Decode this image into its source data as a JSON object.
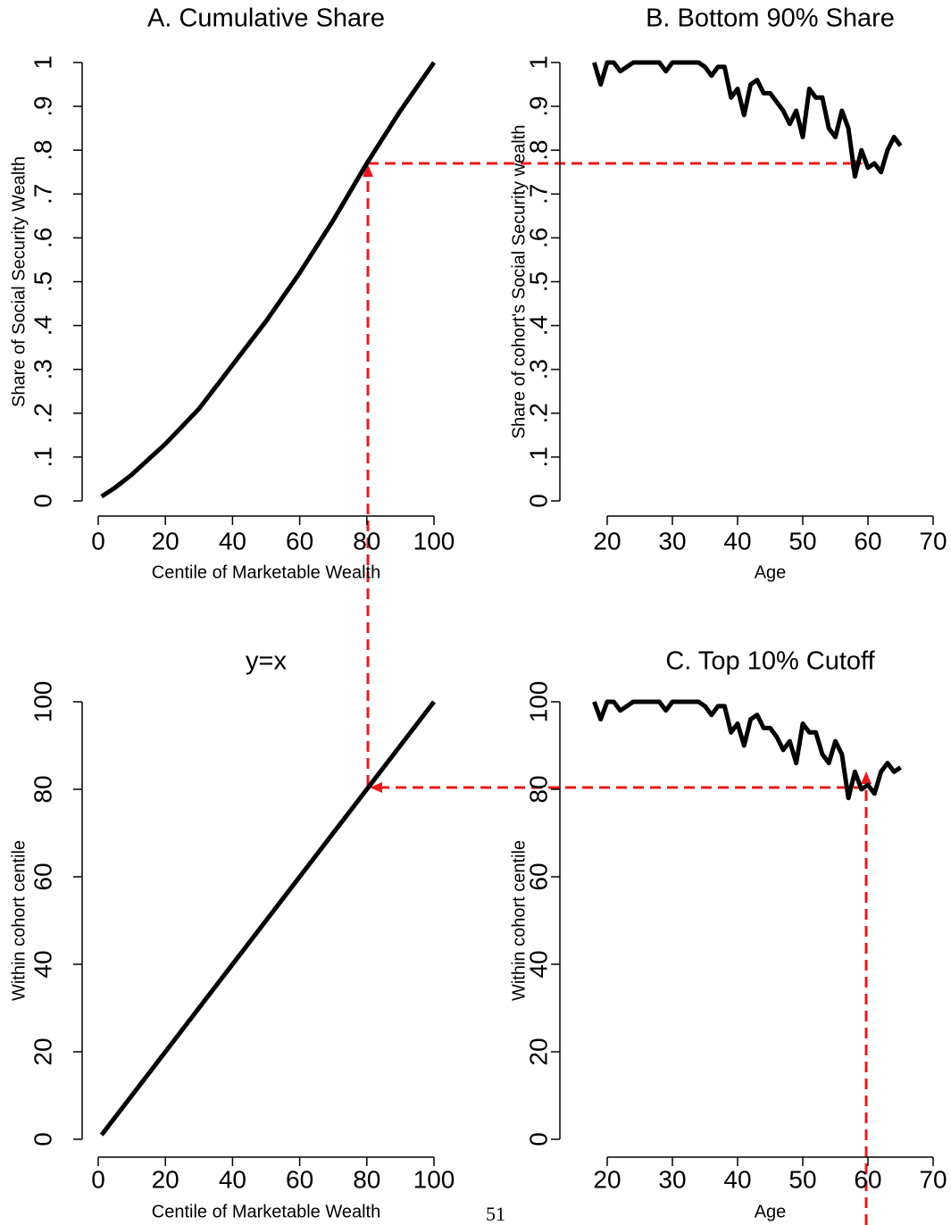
{
  "chart_data": [
    {
      "type": "line",
      "title": "A. Cumulative Share",
      "x_label": "Centile of Marketable Wealth",
      "y_label": "Share of Social Security Wealth",
      "x": [
        1,
        5,
        10,
        20,
        30,
        40,
        50,
        60,
        70,
        80,
        90,
        100
      ],
      "series": [
        {
          "color": "#000000",
          "values": [
            0.01,
            0.03,
            0.06,
            0.13,
            0.21,
            0.31,
            0.41,
            0.52,
            0.64,
            0.77,
            0.89,
            1.0
          ]
        }
      ],
      "xlim": [
        0,
        100
      ],
      "xticks": [
        0,
        20,
        40,
        60,
        80,
        100
      ],
      "ylim": [
        0,
        1
      ],
      "yticks": [
        0,
        {
          "value": 0.1,
          "label": ".1"
        },
        {
          "value": 0.2,
          "label": ".2"
        },
        {
          "value": 0.3,
          "label": ".3"
        },
        {
          "value": 0.4,
          "label": ".4"
        },
        {
          "value": 0.5,
          "label": ".5"
        },
        {
          "value": 0.6,
          "label": ".6"
        },
        {
          "value": 0.7,
          "label": ".7"
        },
        {
          "value": 0.8,
          "label": ".8"
        },
        {
          "value": 0.9,
          "label": ".9"
        },
        1
      ]
    },
    {
      "type": "line",
      "title": "B. Bottom 90% Share",
      "x_label": "Age",
      "y_label": "Share of cohort's Social Security wealth",
      "x": [
        18,
        19,
        20,
        21,
        22,
        23,
        24,
        25,
        26,
        27,
        28,
        29,
        30,
        31,
        32,
        33,
        34,
        35,
        36,
        37,
        38,
        39,
        40,
        41,
        42,
        43,
        44,
        45,
        46,
        47,
        48,
        49,
        50,
        51,
        52,
        53,
        54,
        55,
        56,
        57,
        58,
        59,
        60,
        61,
        62,
        63,
        64,
        65
      ],
      "series": [
        {
          "color": "#000000",
          "values": [
            1.0,
            0.95,
            1.0,
            1.0,
            0.98,
            0.99,
            1.0,
            1.0,
            1.0,
            1.0,
            1.0,
            0.98,
            1.0,
            1.0,
            1.0,
            1.0,
            1.0,
            0.99,
            0.97,
            0.99,
            0.99,
            0.92,
            0.94,
            0.88,
            0.95,
            0.96,
            0.93,
            0.93,
            0.91,
            0.89,
            0.86,
            0.89,
            0.83,
            0.94,
            0.92,
            0.92,
            0.85,
            0.83,
            0.89,
            0.85,
            0.74,
            0.8,
            0.76,
            0.77,
            0.75,
            0.8,
            0.83,
            0.81
          ]
        }
      ],
      "xlim": [
        20,
        70
      ],
      "xticks": [
        20,
        30,
        40,
        50,
        60,
        70
      ],
      "ylim": [
        0,
        1
      ],
      "yticks": [
        0,
        {
          "value": 0.1,
          "label": ".1"
        },
        {
          "value": 0.2,
          "label": ".2"
        },
        {
          "value": 0.3,
          "label": ".3"
        },
        {
          "value": 0.4,
          "label": ".4"
        },
        {
          "value": 0.5,
          "label": ".5"
        },
        {
          "value": 0.6,
          "label": ".6"
        },
        {
          "value": 0.7,
          "label": ".7"
        },
        {
          "value": 0.8,
          "label": ".8"
        },
        {
          "value": 0.9,
          "label": ".9"
        },
        1
      ]
    },
    {
      "type": "line",
      "title": "y=x",
      "x_label": "Centile of Marketable Wealth",
      "y_label": "Within cohort centile",
      "x": [
        1,
        100
      ],
      "series": [
        {
          "color": "#000000",
          "values": [
            1,
            100
          ]
        }
      ],
      "xlim": [
        0,
        100
      ],
      "xticks": [
        0,
        20,
        40,
        60,
        80,
        100
      ],
      "ylim": [
        0,
        100
      ],
      "yticks": [
        0,
        20,
        40,
        60,
        80,
        100
      ]
    },
    {
      "type": "line",
      "title": "C. Top 10% Cutoff",
      "x_label": "Age",
      "y_label": "Within cohort centile",
      "x": [
        18,
        19,
        20,
        21,
        22,
        23,
        24,
        25,
        26,
        27,
        28,
        29,
        30,
        31,
        32,
        33,
        34,
        35,
        36,
        37,
        38,
        39,
        40,
        41,
        42,
        43,
        44,
        45,
        46,
        47,
        48,
        49,
        50,
        51,
        52,
        53,
        54,
        55,
        56,
        57,
        58,
        59,
        60,
        61,
        62,
        63,
        64,
        65
      ],
      "series": [
        {
          "color": "#000000",
          "values": [
            100,
            96,
            100,
            100,
            98,
            99,
            100,
            100,
            100,
            100,
            100,
            98,
            100,
            100,
            100,
            100,
            100,
            99,
            97,
            99,
            99,
            93,
            95,
            90,
            96,
            97,
            94,
            94,
            92,
            89,
            91,
            86,
            95,
            93,
            93,
            88,
            86,
            91,
            88,
            78,
            84,
            80,
            81,
            79,
            84,
            86,
            84,
            85
          ]
        }
      ],
      "xlim": [
        20,
        70
      ],
      "xticks": [
        20,
        30,
        40,
        50,
        60,
        70
      ],
      "ylim": [
        0,
        100
      ],
      "yticks": [
        0,
        20,
        40,
        60,
        80,
        100
      ]
    }
  ],
  "page_number": "51"
}
